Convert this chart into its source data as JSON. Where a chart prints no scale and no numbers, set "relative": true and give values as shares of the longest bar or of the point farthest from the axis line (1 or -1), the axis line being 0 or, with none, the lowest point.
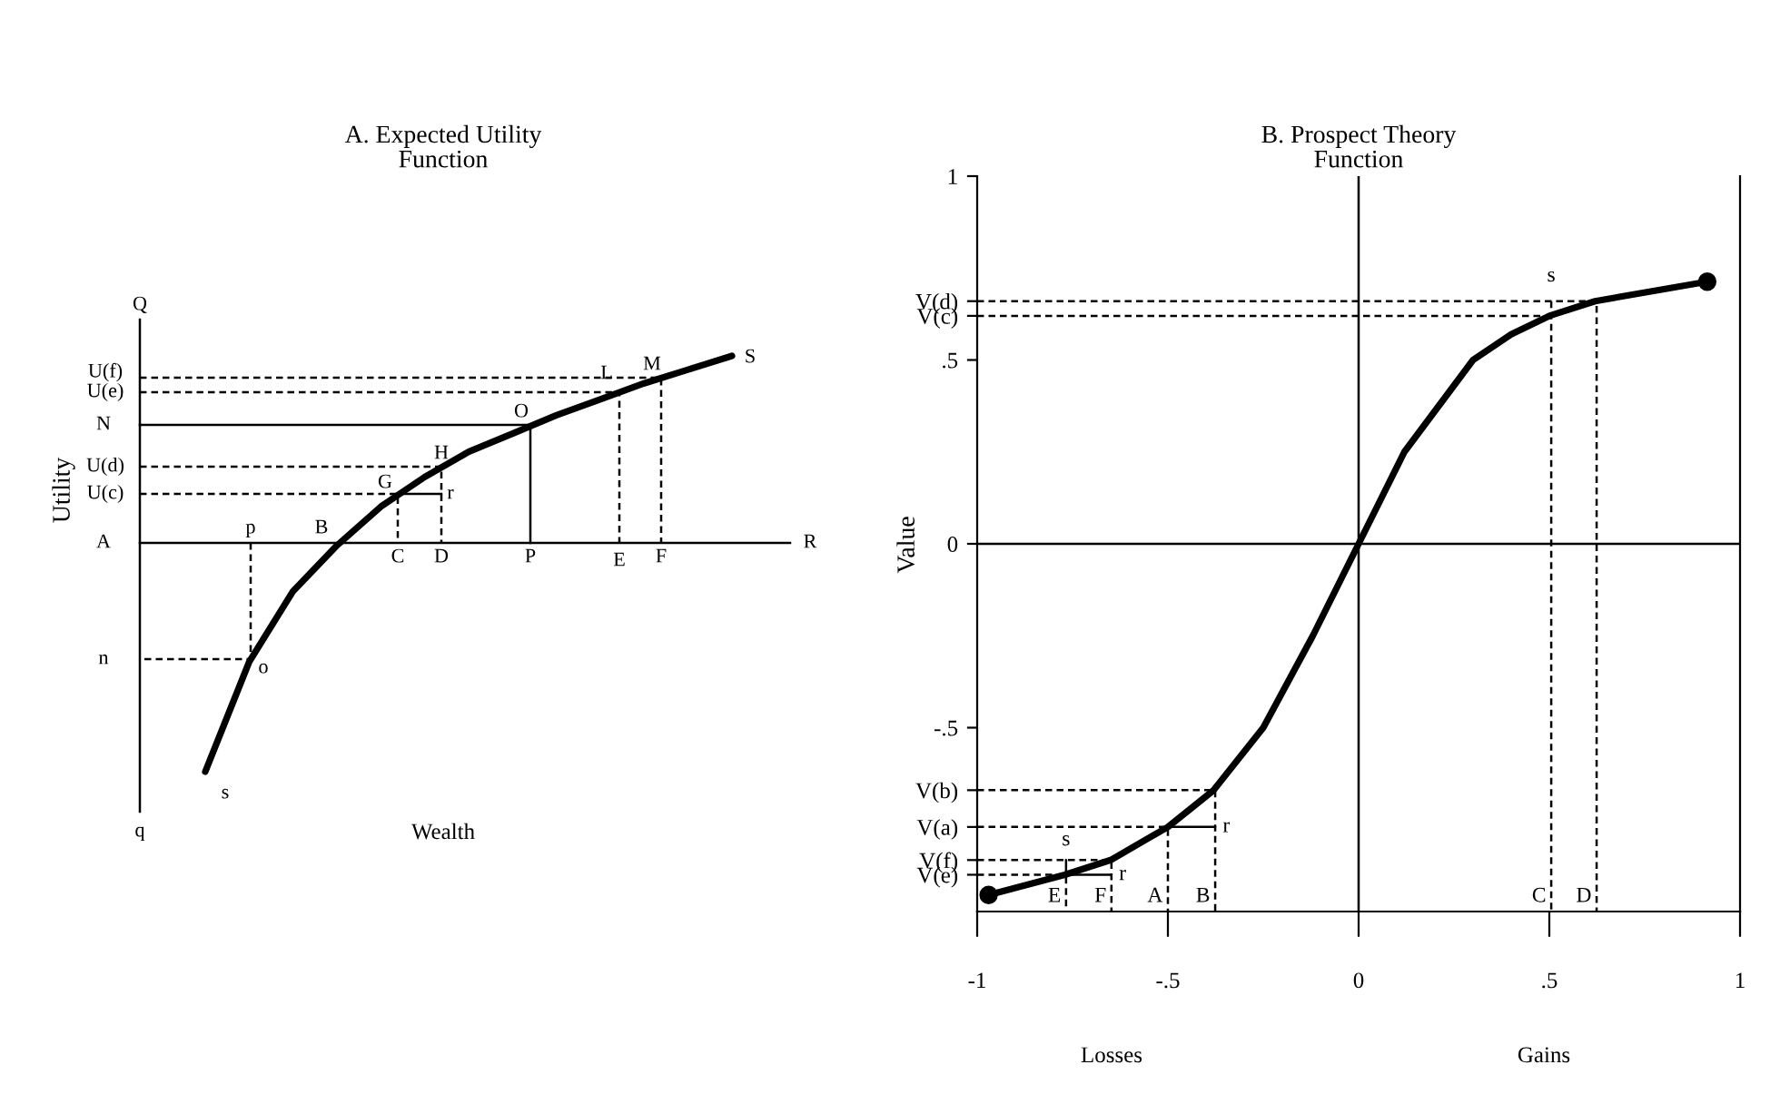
{
  "chart_data": [
    {
      "type": "line",
      "relative": true,
      "title": "A. Expected Utility\nFunction",
      "xlabel": "Wealth",
      "ylabel": "Utility",
      "categories": [
        null,
        null,
        null,
        null,
        null,
        null,
        null,
        null,
        null,
        null,
        null,
        null,
        null
      ],
      "series": [
        {
          "color": "#000000",
          "line_style": "solid",
          "values": [
            -1,
            -0.52,
            -0.21,
            -0.01,
            0.16,
            0.29,
            0.4,
            0.48,
            0.56,
            0.63,
            0.7,
            0.76,
            0.82
          ]
        }
      ],
      "annotations": [
        "Q",
        "q",
        "U(f)",
        "U(e)",
        "N",
        "U(d)",
        "U(c)",
        "A",
        "n",
        "p",
        "B",
        "C",
        "D",
        "P",
        "E",
        "F",
        "R",
        "G",
        "H",
        "r",
        "O",
        "L",
        "M",
        "S",
        "o",
        "s"
      ]
    },
    {
      "type": "line",
      "title": "B. Prospect Theory\nFunction",
      "ylabel": "Value",
      "xlim": [
        -1,
        1
      ],
      "ylim": [
        -1,
        1
      ],
      "xticks": [
        -1,
        {
          "value": -0.5,
          "label": "-.5"
        },
        0,
        {
          "value": 0.5,
          "label": ".5"
        },
        1
      ],
      "yticks": [
        1,
        {
          "value": 0.66,
          "label": "V(d)"
        },
        {
          "value": 0.62,
          "label": "V(c)"
        },
        {
          "value": 0.5,
          "label": ".5"
        },
        0,
        {
          "value": -0.5,
          "label": "-.5"
        },
        {
          "value": -0.67,
          "label": "V(b)"
        },
        {
          "value": -0.77,
          "label": "V(a)"
        },
        {
          "value": -0.86,
          "label": "V(f)"
        },
        {
          "value": -0.9,
          "label": "V(e)"
        }
      ],
      "series": [
        {
          "color": "#000000",
          "line_style": "solid",
          "x": [
            -0.97,
            -0.77,
            -0.65,
            -0.5,
            -0.38,
            -0.25,
            -0.12,
            0,
            0.12,
            0.3,
            0.4,
            0.5,
            0.62,
            0.914
          ],
          "values": [
            -0.955,
            -0.9,
            -0.86,
            -0.77,
            -0.67,
            -0.5,
            -0.25,
            0,
            0.25,
            0.5,
            0.57,
            0.62,
            0.66,
            0.713
          ]
        },
        {
          "type": "scatter",
          "marker": "circle",
          "color": "#000000",
          "x": [
            -0.97,
            0.914
          ],
          "values": [
            -0.955,
            0.713
          ]
        },
        {
          "color": "#000000",
          "line_style": "dashed",
          "x": [
            -1,
            0.624,
            0.624
          ],
          "values": [
            0.66,
            0.66,
            -1
          ]
        },
        {
          "color": "#000000",
          "line_style": "dashed",
          "x": [
            -1,
            0.505
          ],
          "values": [
            0.62,
            0.62
          ]
        },
        {
          "color": "#000000",
          "line_style": "dashed",
          "x": [
            0.505,
            0.505
          ],
          "values": [
            0.66,
            -1
          ]
        },
        {
          "color": "#000000",
          "line_style": "dashed",
          "x": [
            -1,
            -0.376,
            -0.376
          ],
          "values": [
            -0.67,
            -0.67,
            -1
          ]
        },
        {
          "color": "#000000",
          "line_style": "dashed",
          "x": [
            -1,
            -0.5,
            -0.5
          ],
          "values": [
            -0.77,
            -0.77,
            -1
          ]
        },
        {
          "color": "#000000",
          "line_style": "solid",
          "x": [
            -0.5,
            -0.376
          ],
          "values": [
            -0.77,
            -0.77
          ]
        },
        {
          "color": "#000000",
          "line_style": "dashed",
          "x": [
            -1,
            -0.648,
            -0.648
          ],
          "values": [
            -0.86,
            -0.86,
            -1
          ]
        },
        {
          "color": "#000000",
          "line_style": "dashed",
          "x": [
            -1,
            -0.767,
            -0.767
          ],
          "values": [
            -0.9,
            -0.9,
            -1
          ]
        },
        {
          "color": "#000000",
          "line_style": "solid",
          "x": [
            -0.767,
            -0.648
          ],
          "values": [
            -0.9,
            -0.9
          ]
        },
        {
          "color": "#000000",
          "line_style": "solid",
          "x": [
            -0.767,
            -0.767
          ],
          "values": [
            -0.9,
            -0.86
          ]
        },
        {
          "color": "#000000",
          "line_style": "solid",
          "x": [
            0,
            0
          ],
          "values": [
            -1,
            1
          ]
        },
        {
          "color": "#000000",
          "line_style": "solid",
          "x": [
            -1,
            1
          ],
          "values": [
            0,
            0
          ]
        }
      ],
      "annotations": [
        "Losses",
        "Gains",
        {
          "text": "E",
          "x": -0.767,
          "y": -1
        },
        {
          "text": "F",
          "x": -0.648,
          "y": -1
        },
        {
          "text": "A",
          "x": -0.5,
          "y": -1
        },
        {
          "text": "B",
          "x": -0.376,
          "y": -1
        },
        {
          "text": "C",
          "x": 0.505,
          "y": -1
        },
        {
          "text": "D",
          "x": 0.624,
          "y": -1
        },
        {
          "text": "s",
          "x": 0.505,
          "y": 0.66
        },
        {
          "text": "r",
          "x": -0.376,
          "y": -0.77
        },
        {
          "text": "s",
          "x": -0.767,
          "y": -0.86
        },
        {
          "text": "r",
          "x": -0.648,
          "y": -0.9
        }
      ]
    }
  ]
}
